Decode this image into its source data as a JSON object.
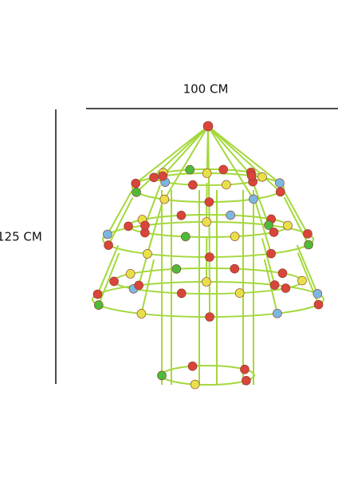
{
  "dimensions": {
    "width_label": "100 CM",
    "height_label": "125 CM"
  }
}
